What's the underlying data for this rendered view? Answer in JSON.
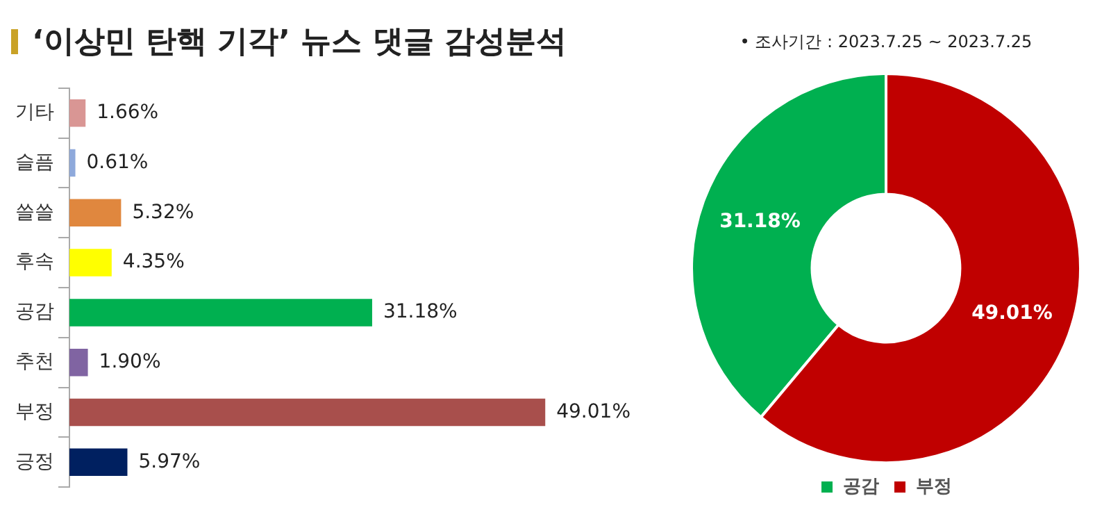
{
  "chart_data": [
    {
      "type": "bar",
      "title": "‘이상민 탄핵 기각’ 뉴스 댓글 감성분석",
      "orientation": "horizontal",
      "categories": [
        "기타",
        "슬픔",
        "쓸쓸",
        "후속",
        "공감",
        "추천",
        "부정",
        "긍정"
      ],
      "values": [
        1.66,
        0.61,
        5.32,
        4.35,
        31.18,
        1.9,
        49.01,
        5.97
      ],
      "colors": [
        "#d99694",
        "#8ea9db",
        "#e0873e",
        "#ffff00",
        "#00b050",
        "#8064a2",
        "#a84f4c",
        "#002060"
      ],
      "value_labels": [
        "1.66%",
        "0.61%",
        "5.32%",
        "4.35%",
        "31.18%",
        "1.90%",
        "49.01%",
        "5.97%"
      ],
      "grid": false,
      "legend": false
    },
    {
      "type": "donut",
      "annotations": [
        "• 조사기간 : 2023.7.25 ~ 2023.7.25"
      ],
      "categories": [
        "공감",
        "부정"
      ],
      "values": [
        31.18,
        49.01
      ],
      "colors": [
        "#00b050",
        "#c00000"
      ],
      "value_labels": [
        "31.18%",
        "49.01%"
      ],
      "legend": "bottom"
    }
  ]
}
